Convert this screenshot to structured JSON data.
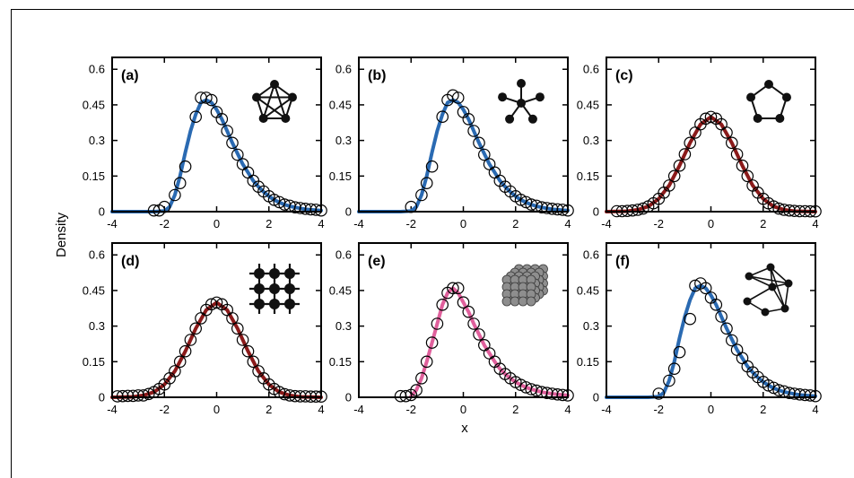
{
  "figure": {
    "ylabel": "Density",
    "xlabel": "x"
  },
  "chart_data": [
    {
      "type": "line",
      "panel": "(a)",
      "icon": "complete-graph-k5-icon",
      "curve_color": "#2a6ab2",
      "xlim": [
        -4,
        4
      ],
      "ylim": [
        0,
        0.65
      ],
      "xticks": [
        -4,
        -2,
        0,
        2,
        4
      ],
      "yticks": [
        0,
        0.15,
        0.3,
        0.45,
        0.6
      ],
      "curve": {
        "x": [
          -4,
          -3,
          -2.4,
          -2,
          -1.8,
          -1.6,
          -1.4,
          -1.2,
          -1.0,
          -0.8,
          -0.6,
          -0.4,
          -0.2,
          0,
          0.2,
          0.4,
          0.6,
          0.8,
          1.0,
          1.2,
          1.4,
          1.6,
          1.8,
          2.0,
          2.2,
          2.4,
          2.6,
          2.8,
          3.0,
          3.2,
          3.4,
          3.6,
          3.8,
          4.0
        ],
        "y": [
          0,
          0,
          0,
          0.003,
          0.02,
          0.07,
          0.15,
          0.25,
          0.34,
          0.41,
          0.46,
          0.47,
          0.46,
          0.43,
          0.39,
          0.34,
          0.29,
          0.245,
          0.2,
          0.165,
          0.13,
          0.105,
          0.083,
          0.065,
          0.05,
          0.039,
          0.03,
          0.023,
          0.018,
          0.014,
          0.01,
          0.008,
          0.006,
          0.005
        ]
      },
      "points": {
        "x": [
          -2.4,
          -2.0,
          -1.6,
          -1.2,
          -0.8,
          -0.4,
          0,
          0.4,
          0.8,
          1.2,
          1.6,
          2.0,
          2.4,
          2.8,
          3.2,
          3.6,
          4.0,
          -2.2,
          -1.4,
          -0.6,
          -0.2,
          0.2,
          0.6,
          1.0,
          1.4,
          1.8,
          2.2,
          2.6,
          3.0,
          3.4,
          3.8
        ],
        "y": [
          0.005,
          0.02,
          0.07,
          0.19,
          0.4,
          0.48,
          0.42,
          0.34,
          0.24,
          0.165,
          0.105,
          0.065,
          0.04,
          0.025,
          0.015,
          0.01,
          0.005,
          0.005,
          0.12,
          0.48,
          0.47,
          0.39,
          0.29,
          0.2,
          0.13,
          0.085,
          0.05,
          0.03,
          0.018,
          0.012,
          0.008
        ]
      }
    },
    {
      "type": "line",
      "panel": "(b)",
      "icon": "star-graph-icon",
      "curve_color": "#2a6ab2",
      "xlim": [
        -4,
        4
      ],
      "ylim": [
        0,
        0.65
      ],
      "xticks": [
        -4,
        -2,
        0,
        2,
        4
      ],
      "yticks": [
        0,
        0.15,
        0.3,
        0.45,
        0.6
      ],
      "curve": {
        "x": [
          -4,
          -3,
          -2.4,
          -2,
          -1.8,
          -1.6,
          -1.4,
          -1.2,
          -1.0,
          -0.8,
          -0.6,
          -0.4,
          -0.2,
          0,
          0.2,
          0.4,
          0.6,
          0.8,
          1.0,
          1.2,
          1.4,
          1.6,
          1.8,
          2.0,
          2.2,
          2.4,
          2.6,
          2.8,
          3.0,
          3.2,
          3.4,
          3.6,
          3.8,
          4.0
        ],
        "y": [
          0,
          0,
          0,
          0.003,
          0.02,
          0.07,
          0.15,
          0.25,
          0.34,
          0.41,
          0.46,
          0.47,
          0.46,
          0.43,
          0.39,
          0.34,
          0.29,
          0.245,
          0.2,
          0.165,
          0.13,
          0.105,
          0.083,
          0.065,
          0.05,
          0.039,
          0.03,
          0.023,
          0.018,
          0.014,
          0.01,
          0.008,
          0.006,
          0.005
        ]
      },
      "points": {
        "x": [
          -2.0,
          -1.6,
          -1.2,
          -0.8,
          -0.4,
          0,
          0.4,
          0.8,
          1.2,
          1.6,
          2.0,
          2.4,
          2.8,
          3.2,
          3.6,
          4.0,
          -1.4,
          -0.6,
          -0.2,
          0.2,
          0.6,
          1.0,
          1.4,
          1.8,
          2.2,
          2.6,
          3.0,
          3.4,
          3.8
        ],
        "y": [
          0.02,
          0.07,
          0.19,
          0.4,
          0.49,
          0.42,
          0.34,
          0.24,
          0.165,
          0.105,
          0.065,
          0.04,
          0.025,
          0.015,
          0.01,
          0.005,
          0.12,
          0.47,
          0.48,
          0.39,
          0.29,
          0.2,
          0.13,
          0.085,
          0.05,
          0.03,
          0.018,
          0.012,
          0.008
        ]
      }
    },
    {
      "type": "line",
      "panel": "(c)",
      "icon": "cycle-graph-c5-icon",
      "curve_color": "#8b1a1a",
      "xlim": [
        -4,
        4
      ],
      "ylim": [
        0,
        0.65
      ],
      "xticks": [
        -4,
        -2,
        0,
        2,
        4
      ],
      "yticks": [
        0,
        0.15,
        0.3,
        0.45,
        0.6
      ],
      "curve": {
        "x": [
          -4,
          -3.6,
          -3.2,
          -2.8,
          -2.4,
          -2.0,
          -1.6,
          -1.2,
          -0.8,
          -0.4,
          0,
          0.4,
          0.8,
          1.2,
          1.6,
          2.0,
          2.4,
          2.8,
          3.2,
          3.6,
          4.0
        ],
        "y": [
          0,
          0.001,
          0.002,
          0.008,
          0.022,
          0.054,
          0.11,
          0.194,
          0.29,
          0.368,
          0.399,
          0.368,
          0.29,
          0.194,
          0.11,
          0.054,
          0.022,
          0.008,
          0.002,
          0.001,
          0
        ]
      },
      "points": {
        "x": [
          -3.6,
          -3.2,
          -2.8,
          -2.4,
          -2.0,
          -1.6,
          -1.2,
          -0.8,
          -0.4,
          0,
          0.4,
          0.8,
          1.2,
          1.6,
          2.0,
          2.4,
          2.8,
          3.2,
          3.6,
          4.0,
          -3.4,
          -3.0,
          -2.6,
          -2.2,
          -1.8,
          -1.4,
          -1.0,
          -0.6,
          -0.2,
          0.2,
          0.6,
          1.0,
          1.4,
          1.8,
          2.2,
          2.6,
          3.0,
          3.4,
          3.8
        ],
        "y": [
          0.002,
          0.003,
          0.008,
          0.022,
          0.054,
          0.11,
          0.194,
          0.29,
          0.368,
          0.399,
          0.368,
          0.29,
          0.194,
          0.11,
          0.054,
          0.022,
          0.008,
          0.003,
          0.002,
          0.001,
          0.002,
          0.005,
          0.013,
          0.035,
          0.08,
          0.15,
          0.242,
          0.333,
          0.392,
          0.392,
          0.333,
          0.242,
          0.15,
          0.08,
          0.035,
          0.013,
          0.005,
          0.002,
          0.001
        ]
      }
    },
    {
      "type": "line",
      "panel": "(d)",
      "icon": "grid-lattice-icon",
      "curve_color": "#8b1a1a",
      "xlim": [
        -4,
        4
      ],
      "ylim": [
        0,
        0.65
      ],
      "xticks": [
        -4,
        -2,
        0,
        2,
        4
      ],
      "yticks": [
        0,
        0.15,
        0.3,
        0.45,
        0.6
      ],
      "curve": {
        "x": [
          -4,
          -3.6,
          -3.2,
          -2.8,
          -2.4,
          -2.0,
          -1.6,
          -1.2,
          -0.8,
          -0.4,
          0,
          0.4,
          0.8,
          1.2,
          1.6,
          2.0,
          2.4,
          2.8,
          3.2,
          3.6,
          4.0
        ],
        "y": [
          0,
          0.001,
          0.002,
          0.008,
          0.022,
          0.054,
          0.11,
          0.194,
          0.29,
          0.368,
          0.399,
          0.368,
          0.29,
          0.194,
          0.11,
          0.054,
          0.022,
          0.008,
          0.002,
          0.001,
          0
        ]
      },
      "points": {
        "x": [
          -3.8,
          -3.4,
          -3.0,
          -2.6,
          -2.2,
          -1.8,
          -1.4,
          -1.0,
          -0.6,
          -0.2,
          0.2,
          0.6,
          1.0,
          1.4,
          1.8,
          2.2,
          2.6,
          3.0,
          3.4,
          3.8,
          -3.6,
          -3.2,
          -2.8,
          -2.4,
          -2.0,
          -1.6,
          -1.2,
          -0.8,
          -0.4,
          0,
          0.4,
          0.8,
          1.2,
          1.6,
          2.0,
          2.4,
          2.8,
          3.2,
          3.6,
          4.0
        ],
        "y": [
          0.004,
          0.006,
          0.008,
          0.014,
          0.035,
          0.08,
          0.15,
          0.242,
          0.333,
          0.392,
          0.392,
          0.333,
          0.242,
          0.15,
          0.08,
          0.035,
          0.013,
          0.005,
          0.004,
          0.003,
          0.005,
          0.006,
          0.008,
          0.022,
          0.054,
          0.11,
          0.194,
          0.29,
          0.368,
          0.399,
          0.368,
          0.29,
          0.194,
          0.11,
          0.054,
          0.022,
          0.008,
          0.004,
          0.003,
          0.003
        ]
      }
    },
    {
      "type": "line",
      "panel": "(e)",
      "icon": "cubic-lattice-icon",
      "curve_color": "#e0609c",
      "xlim": [
        -4,
        4
      ],
      "ylim": [
        0,
        0.65
      ],
      "xticks": [
        -4,
        -2,
        0,
        2,
        4
      ],
      "yticks": [
        0,
        0.15,
        0.3,
        0.45,
        0.6
      ],
      "curve": {
        "x": [
          -2.0,
          -1.8,
          -1.6,
          -1.4,
          -1.2,
          -1.0,
          -0.8,
          -0.6,
          -0.4,
          -0.2,
          0,
          0.2,
          0.4,
          0.6,
          0.8,
          1.0,
          1.2,
          1.4,
          1.6,
          1.8,
          2.0,
          2.2,
          2.4,
          2.6,
          2.8,
          3.0,
          3.2,
          3.4,
          3.6,
          3.8,
          4.0
        ],
        "y": [
          0.005,
          0.03,
          0.08,
          0.15,
          0.23,
          0.31,
          0.39,
          0.44,
          0.46,
          0.44,
          0.4,
          0.36,
          0.31,
          0.265,
          0.22,
          0.185,
          0.15,
          0.12,
          0.098,
          0.08,
          0.064,
          0.052,
          0.042,
          0.034,
          0.028,
          0.022,
          0.018,
          0.015,
          0.012,
          0.01,
          0.008
        ]
      },
      "points": {
        "x": [
          -2.4,
          -2.0,
          -1.6,
          -1.2,
          -0.8,
          -0.4,
          0,
          0.4,
          0.8,
          1.2,
          1.6,
          2.0,
          2.4,
          2.8,
          3.2,
          3.6,
          4.0,
          -2.2,
          -1.8,
          -1.4,
          -1.0,
          -0.6,
          -0.2,
          0.2,
          0.6,
          1.0,
          1.4,
          1.8,
          2.2,
          2.6,
          3.0,
          3.4,
          3.8
        ],
        "y": [
          0.005,
          0.01,
          0.08,
          0.23,
          0.39,
          0.46,
          0.4,
          0.31,
          0.22,
          0.15,
          0.098,
          0.064,
          0.042,
          0.028,
          0.018,
          0.012,
          0.008,
          0.005,
          0.03,
          0.15,
          0.31,
          0.44,
          0.46,
          0.36,
          0.265,
          0.185,
          0.12,
          0.08,
          0.052,
          0.034,
          0.022,
          0.015,
          0.01
        ]
      }
    },
    {
      "type": "line",
      "panel": "(f)",
      "icon": "random-graph-icon",
      "curve_color": "#2a6ab2",
      "xlim": [
        -4,
        4
      ],
      "ylim": [
        0,
        0.65
      ],
      "xticks": [
        -4,
        -2,
        0,
        2,
        4
      ],
      "yticks": [
        0,
        0.15,
        0.3,
        0.45,
        0.6
      ],
      "curve": {
        "x": [
          -4,
          -3,
          -2.4,
          -2,
          -1.8,
          -1.6,
          -1.4,
          -1.2,
          -1.0,
          -0.8,
          -0.6,
          -0.4,
          -0.2,
          0,
          0.2,
          0.4,
          0.6,
          0.8,
          1.0,
          1.2,
          1.4,
          1.6,
          1.8,
          2.0,
          2.2,
          2.4,
          2.6,
          2.8,
          3.0,
          3.2,
          3.4,
          3.6,
          3.8,
          4.0
        ],
        "y": [
          0,
          0,
          0,
          0.003,
          0.02,
          0.07,
          0.15,
          0.25,
          0.34,
          0.41,
          0.46,
          0.47,
          0.46,
          0.43,
          0.39,
          0.34,
          0.29,
          0.245,
          0.2,
          0.165,
          0.13,
          0.105,
          0.083,
          0.065,
          0.05,
          0.039,
          0.03,
          0.023,
          0.018,
          0.014,
          0.01,
          0.008,
          0.006,
          0.005
        ]
      },
      "points": {
        "x": [
          -2.0,
          -1.6,
          -1.2,
          -0.8,
          -0.4,
          0,
          0.4,
          0.8,
          1.2,
          1.6,
          2.0,
          2.4,
          2.8,
          3.2,
          3.6,
          4.0,
          -1.4,
          -0.6,
          -0.2,
          0.2,
          0.6,
          1.0,
          1.4,
          1.8,
          2.2,
          2.6,
          3.0,
          3.4,
          3.8
        ],
        "y": [
          0.015,
          0.07,
          0.19,
          0.33,
          0.48,
          0.42,
          0.34,
          0.24,
          0.165,
          0.105,
          0.065,
          0.04,
          0.025,
          0.015,
          0.01,
          0.005,
          0.12,
          0.47,
          0.46,
          0.39,
          0.29,
          0.2,
          0.13,
          0.085,
          0.05,
          0.03,
          0.018,
          0.012,
          0.008
        ]
      }
    }
  ]
}
